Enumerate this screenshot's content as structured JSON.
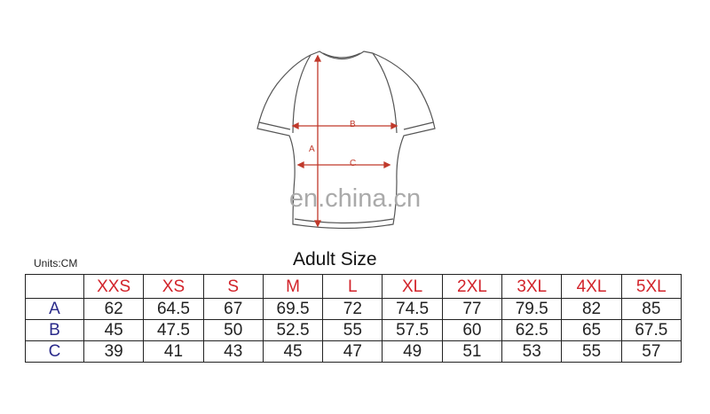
{
  "diagram": {
    "labels": {
      "a": "A",
      "b": "B",
      "c": "C"
    },
    "watermark": "en.china.cn",
    "arrow_color": "#c0392b"
  },
  "units": "Units:CM",
  "title": "Adult Size",
  "table": {
    "header": [
      "XXS",
      "XS",
      "S",
      "M",
      "L",
      "XL",
      "2XL",
      "3XL",
      "4XL",
      "5XL"
    ],
    "rows": [
      {
        "label": "A",
        "values": [
          "62",
          "64.5",
          "67",
          "69.5",
          "72",
          "74.5",
          "77",
          "79.5",
          "82",
          "85"
        ]
      },
      {
        "label": "B",
        "values": [
          "45",
          "47.5",
          "50",
          "52.5",
          "55",
          "57.5",
          "60",
          "62.5",
          "65",
          "67.5"
        ]
      },
      {
        "label": "C",
        "values": [
          "39",
          "41",
          "43",
          "45",
          "47",
          "49",
          "51",
          "53",
          "55",
          "57"
        ]
      }
    ]
  },
  "colors": {
    "header_text": "#d2232a",
    "row_label": "#2a2a8a"
  }
}
